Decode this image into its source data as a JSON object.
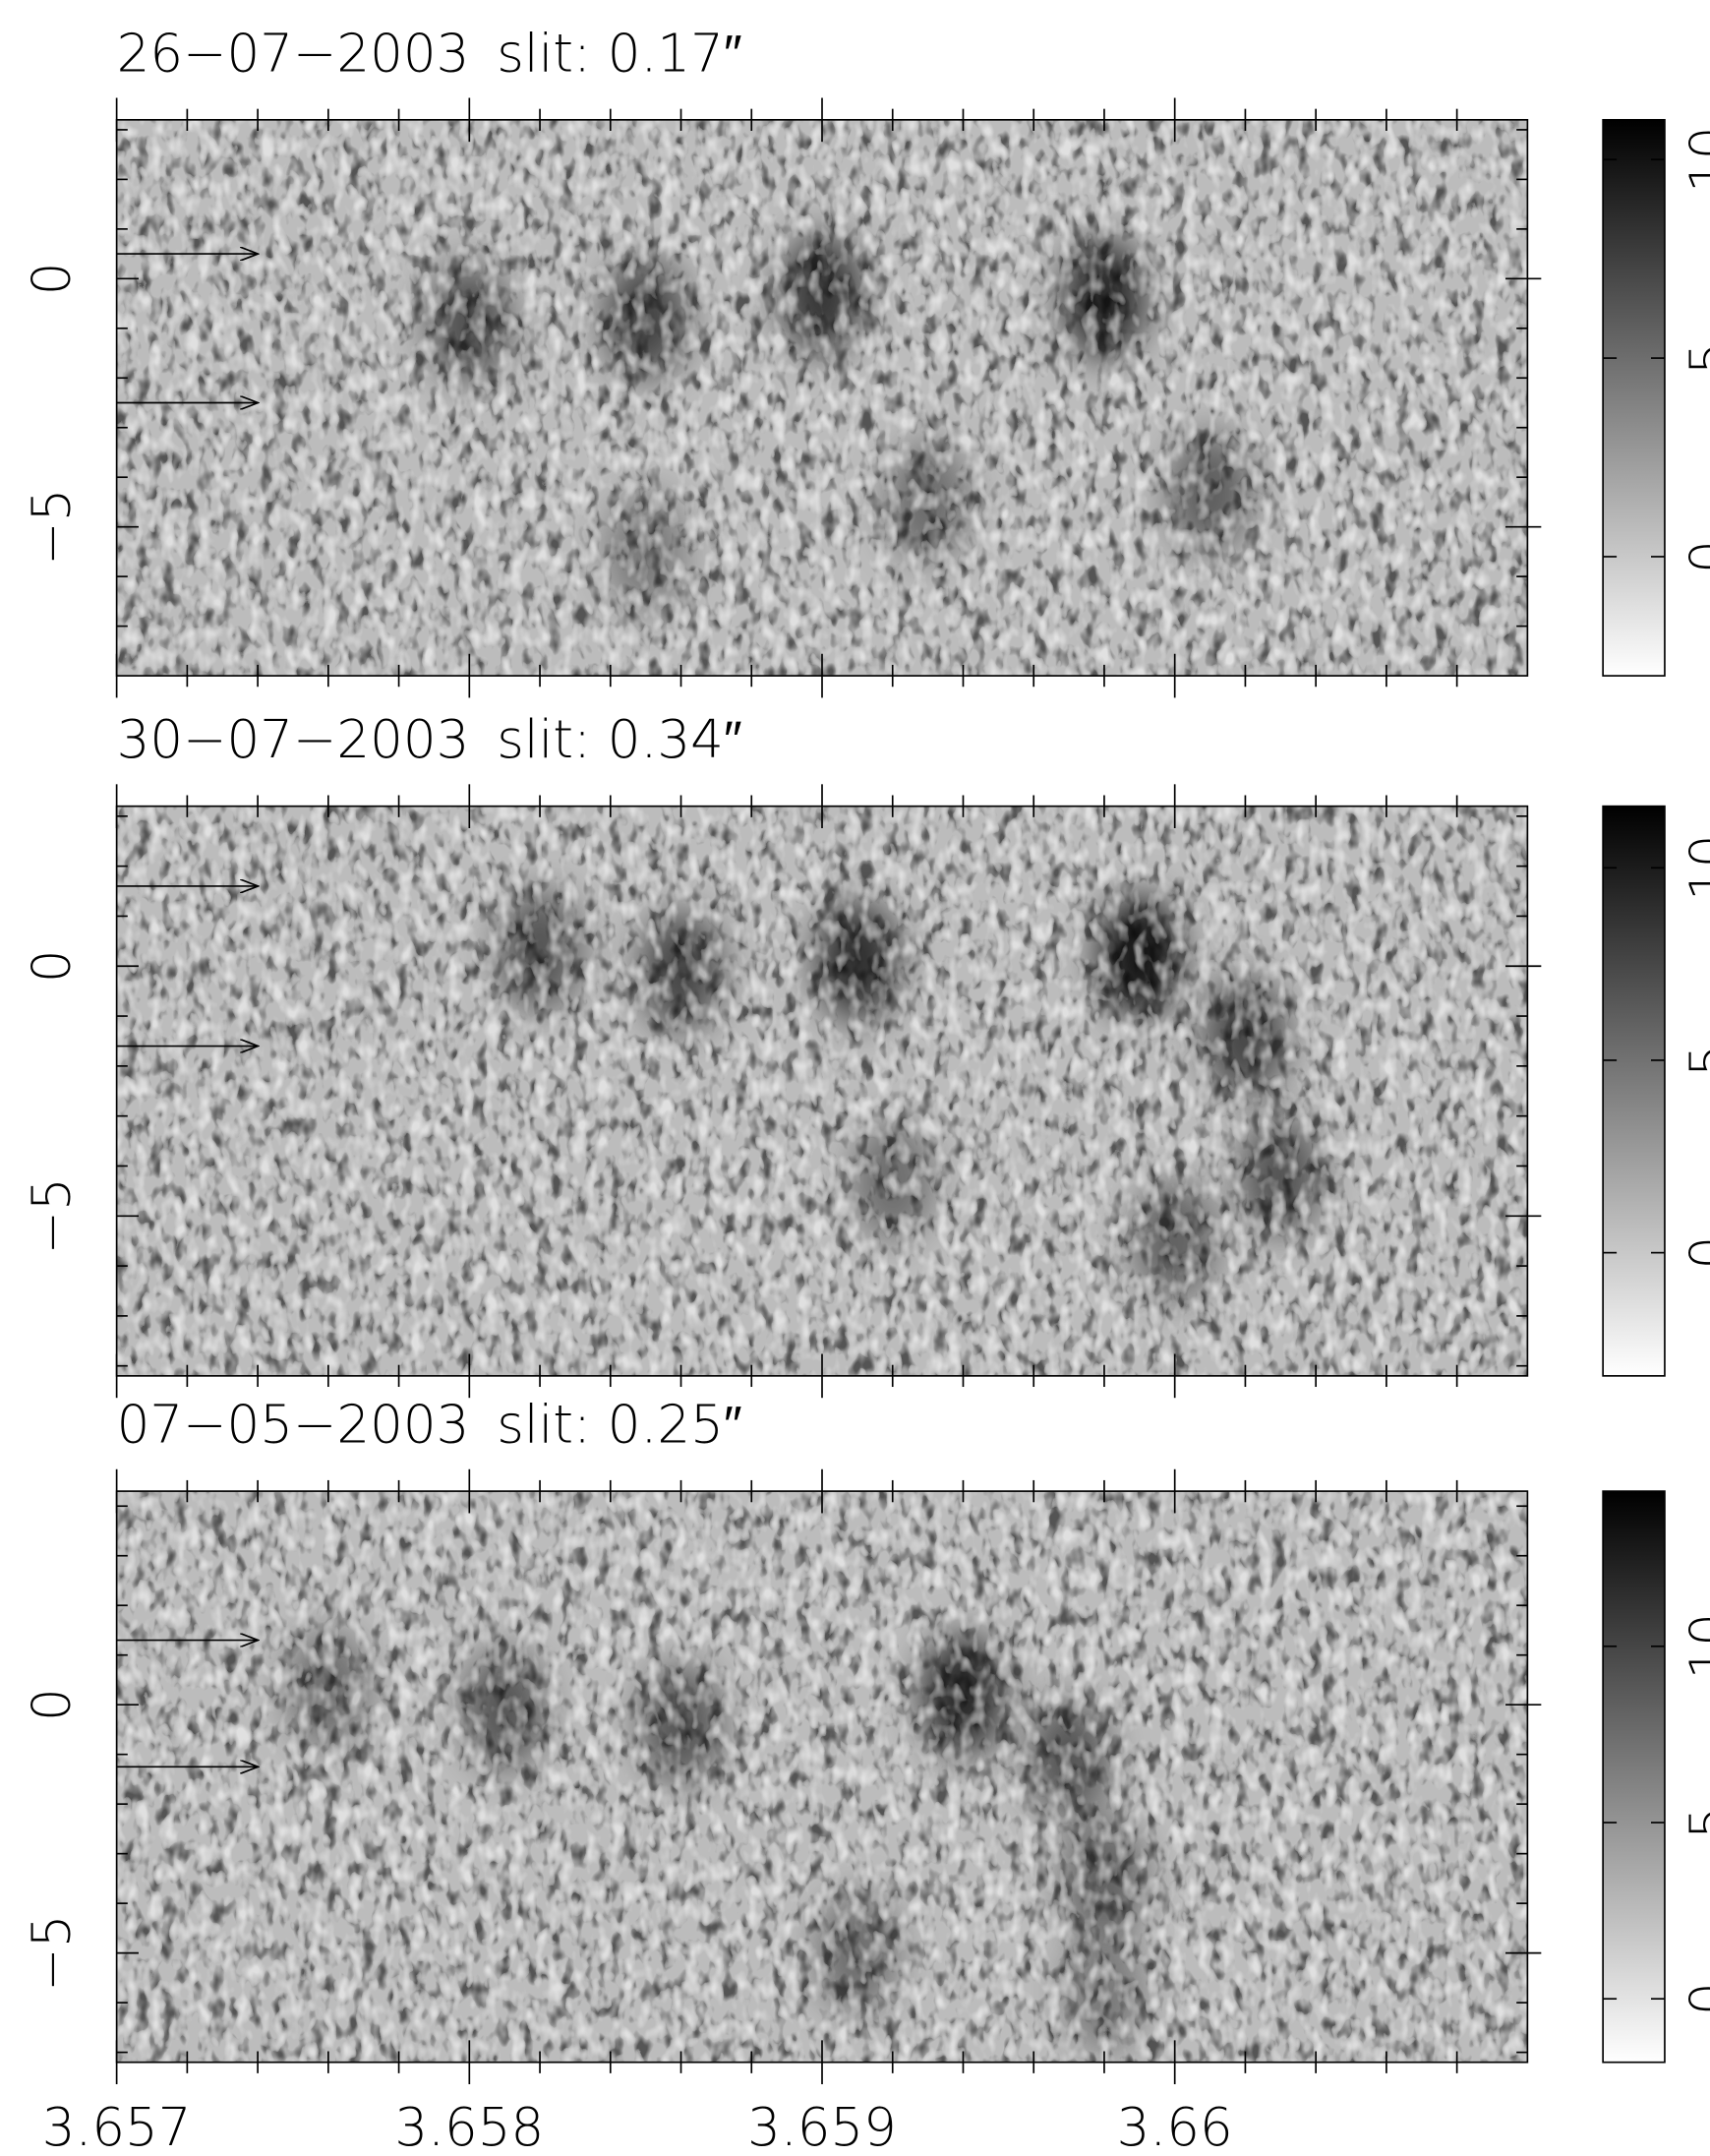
{
  "chart_data": [
    {
      "type": "heatmap",
      "date": "26−07−2003",
      "slit": "slit: 0.17″",
      "xlim": [
        3.657,
        3.661
      ],
      "xticks": [
        3.657,
        3.658,
        3.659,
        3.66
      ],
      "show_xtick_labels": false,
      "xminorticks": [
        3.6572,
        3.6574,
        3.6576,
        3.6578,
        3.6582,
        3.6584,
        3.6586,
        3.6588,
        3.6592,
        3.6594,
        3.6596,
        3.6598,
        3.6602,
        3.6604,
        3.6606,
        3.6608
      ],
      "ylim": [
        -8,
        3.2
      ],
      "yticks": [
        0,
        {
          "value": -5,
          "label": "−5"
        }
      ],
      "yminorticks": [
        3,
        2,
        1,
        -1,
        -2,
        -3,
        -4,
        -6,
        -7
      ],
      "clim": [
        -3,
        11
      ],
      "cticks": [
        0,
        5,
        10
      ],
      "arrows": [
        0.5,
        -2.5
      ],
      "features": [
        {
          "x": 3.658,
          "y": -0.9,
          "value": 5
        },
        {
          "x": 3.6585,
          "y": -0.8,
          "value": 6
        },
        {
          "x": 3.659,
          "y": -0.3,
          "value": 7
        },
        {
          "x": 3.6598,
          "y": -0.4,
          "value": 8
        },
        {
          "x": 3.6601,
          "y": -4.3,
          "value": 4
        },
        {
          "x": 3.6593,
          "y": -4.5,
          "value": 3
        },
        {
          "x": 3.6585,
          "y": -5.5,
          "value": 2
        }
      ]
    },
    {
      "type": "heatmap",
      "date": "30−07−2003",
      "slit": "slit: 0.34″",
      "xlim": [
        3.657,
        3.661
      ],
      "xticks": [
        3.657,
        3.658,
        3.659,
        3.66
      ],
      "show_xtick_labels": false,
      "xminorticks": [
        3.6572,
        3.6574,
        3.6576,
        3.6578,
        3.6582,
        3.6584,
        3.6586,
        3.6588,
        3.6592,
        3.6594,
        3.6596,
        3.6598,
        3.6602,
        3.6604,
        3.6606,
        3.6608
      ],
      "ylim": [
        -8.2,
        3.2
      ],
      "yticks": [
        0,
        {
          "value": -5,
          "label": "−5"
        }
      ],
      "yminorticks": [
        3,
        2,
        1,
        -1,
        -2,
        -3,
        -4,
        -6,
        -7,
        -8
      ],
      "clim": [
        -3.2,
        11.6
      ],
      "cticks": [
        0,
        5,
        10
      ],
      "arrows": [
        1.6,
        -1.6
      ],
      "features": [
        {
          "x": 3.6582,
          "y": 0.3,
          "value": 5
        },
        {
          "x": 3.6586,
          "y": -0.1,
          "value": 6
        },
        {
          "x": 3.6591,
          "y": 0.1,
          "value": 8
        },
        {
          "x": 3.6599,
          "y": 0.2,
          "value": 10
        },
        {
          "x": 3.6602,
          "y": -1.4,
          "value": 6
        },
        {
          "x": 3.6603,
          "y": -4.2,
          "value": 5
        },
        {
          "x": 3.66,
          "y": -5.5,
          "value": 4
        },
        {
          "x": 3.6592,
          "y": -4.3,
          "value": 3
        }
      ]
    },
    {
      "type": "heatmap",
      "date": "07−05−2003",
      "slit": "slit: 0.25″",
      "xlim": [
        3.657,
        3.661
      ],
      "xticks": [
        3.657,
        3.658,
        3.659,
        3.66
      ],
      "show_xtick_labels": true,
      "xminorticks": [
        3.6572,
        3.6574,
        3.6576,
        3.6578,
        3.6582,
        3.6584,
        3.6586,
        3.6588,
        3.6592,
        3.6594,
        3.6596,
        3.6598,
        3.6602,
        3.6604,
        3.6606,
        3.6608
      ],
      "ylim": [
        -7.2,
        4.3
      ],
      "yticks": [
        0,
        {
          "value": -5,
          "label": "−5"
        }
      ],
      "yminorticks": [
        4,
        3,
        2,
        1,
        -1,
        -2,
        -3,
        -4,
        -6,
        -7
      ],
      "clim": [
        -1.8,
        14.4
      ],
      "cticks": [
        0,
        5,
        10
      ],
      "arrows": [
        1.3,
        -1.25
      ],
      "features": [
        {
          "x": 3.6576,
          "y": 0.3,
          "value": 5
        },
        {
          "x": 3.6581,
          "y": -0.1,
          "value": 7
        },
        {
          "x": 3.6586,
          "y": -0.4,
          "value": 7
        },
        {
          "x": 3.6594,
          "y": 0.2,
          "value": 11
        },
        {
          "x": 3.6597,
          "y": -1.1,
          "value": 7
        },
        {
          "x": 3.6598,
          "y": -3.5,
          "value": 6
        },
        {
          "x": 3.6591,
          "y": -5.0,
          "value": 5
        },
        {
          "x": 3.6598,
          "y": -5.8,
          "value": 4
        }
      ]
    }
  ]
}
